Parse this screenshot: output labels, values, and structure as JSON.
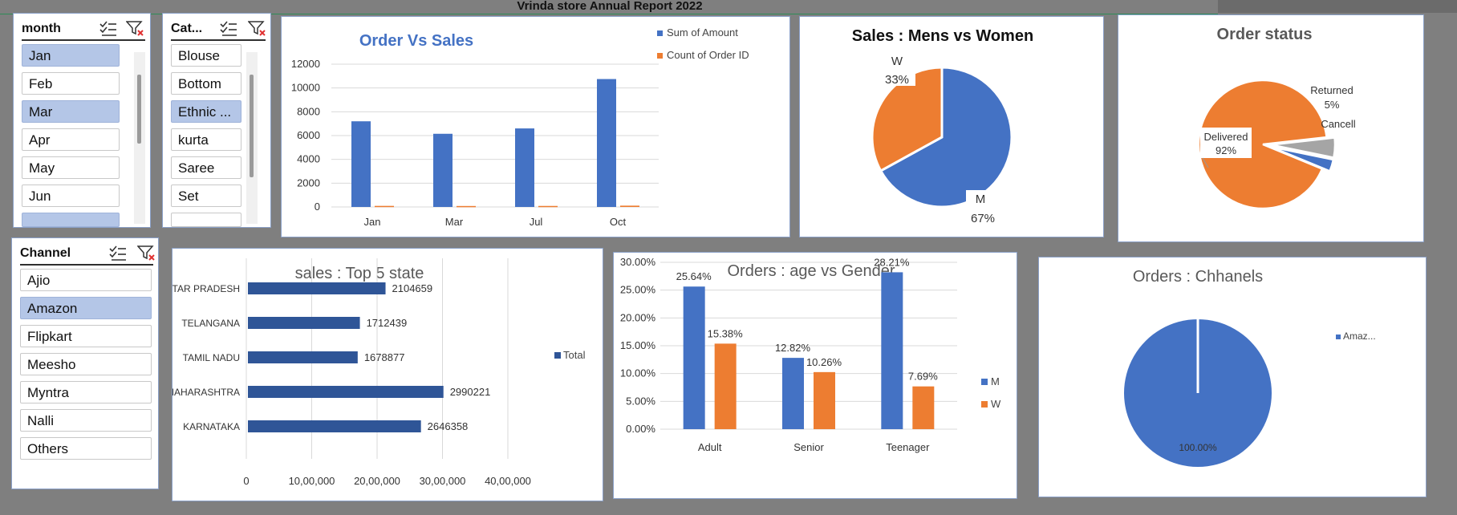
{
  "report_title": "Vrinda store Annual Report 2022",
  "slicers": {
    "month": {
      "label": "month",
      "items": [
        {
          "label": "Jan",
          "selected": true
        },
        {
          "label": "Feb",
          "selected": false
        },
        {
          "label": "Mar",
          "selected": true
        },
        {
          "label": "Apr",
          "selected": false
        },
        {
          "label": "May",
          "selected": false
        },
        {
          "label": "Jun",
          "selected": false
        }
      ]
    },
    "category": {
      "label": "Cat...",
      "items": [
        {
          "label": "Blouse",
          "selected": false
        },
        {
          "label": "Bottom",
          "selected": false
        },
        {
          "label": "Ethnic ...",
          "selected": true
        },
        {
          "label": "kurta",
          "selected": false
        },
        {
          "label": "Saree",
          "selected": false
        },
        {
          "label": "Set",
          "selected": false
        }
      ]
    },
    "channel": {
      "label": "Channel",
      "items": [
        {
          "label": "Ajio",
          "selected": false
        },
        {
          "label": "Amazon",
          "selected": true
        },
        {
          "label": "Flipkart",
          "selected": false
        },
        {
          "label": "Meesho",
          "selected": false
        },
        {
          "label": "Myntra",
          "selected": false
        },
        {
          "label": "Nalli",
          "selected": false
        },
        {
          "label": "Others",
          "selected": false
        }
      ]
    }
  },
  "colors": {
    "blue": "#4472c4",
    "orange": "#ed7d31",
    "gray": "#a5a5a5",
    "darkblue": "#2f5597",
    "accent_title": "#4472c4"
  },
  "chart_data": [
    {
      "id": "order-vs-sales",
      "type": "bar",
      "title": "Order Vs Sales",
      "categories": [
        "Jan",
        "Mar",
        "Jul",
        "Oct"
      ],
      "series": [
        {
          "name": "Sum of Amount",
          "values": [
            7200,
            6150,
            6600,
            10750
          ]
        },
        {
          "name": "Count of Order ID",
          "values": [
            90,
            80,
            85,
            110
          ]
        }
      ],
      "yticks": [
        "12000",
        "10000",
        "8000",
        "6000",
        "4000",
        "2000",
        "0"
      ],
      "ylim": [
        0,
        12000
      ],
      "legend": "top-right"
    },
    {
      "id": "sales-men-women",
      "type": "pie",
      "title": "Sales : Mens vs Women",
      "slices": [
        {
          "name": "M",
          "value": 67,
          "label": "67%"
        },
        {
          "name": "W",
          "value": 33,
          "label": "33%"
        }
      ]
    },
    {
      "id": "order-status",
      "type": "pie",
      "title": "Order status",
      "slices": [
        {
          "name": "Delivered",
          "value": 92,
          "label": "92%"
        },
        {
          "name": "Returned",
          "value": 5,
          "label": "5%"
        },
        {
          "name": "Cancell",
          "value": 3,
          "label": ""
        }
      ]
    },
    {
      "id": "top5-state",
      "type": "bar",
      "orientation": "horizontal",
      "title": "sales : Top 5 state",
      "categories": [
        "UTTAR PRADESH",
        "TELANGANA",
        "TAMIL NADU",
        "MAHARASHTRA",
        "KARNATAKA"
      ],
      "series": [
        {
          "name": "Total",
          "values": [
            2104659,
            1712439,
            1678877,
            2990221,
            2646358
          ]
        }
      ],
      "value_labels": [
        "2104659",
        "1712439",
        "1678877",
        "2990221",
        "2646358"
      ],
      "xticks": [
        "0",
        "10,00,000",
        "20,00,000",
        "30,00,000",
        "40,00,000"
      ],
      "xlim": [
        0,
        4000000
      ],
      "legend": "right"
    },
    {
      "id": "age-vs-gender",
      "type": "bar",
      "title": "Orders : age vs Gender",
      "categories": [
        "Adult",
        "Senior",
        "Teenager"
      ],
      "series": [
        {
          "name": "M",
          "values": [
            25.64,
            12.82,
            28.21
          ],
          "labels": [
            "25.64%",
            "12.82%",
            "28.21%"
          ]
        },
        {
          "name": "W",
          "values": [
            15.38,
            10.26,
            7.69
          ],
          "labels": [
            "15.38%",
            "10.26%",
            "7.69%"
          ]
        }
      ],
      "yticks": [
        "30.00%",
        "25.00%",
        "20.00%",
        "15.00%",
        "10.00%",
        "5.00%",
        "0.00%"
      ],
      "ylim": [
        0,
        30
      ],
      "legend": "right"
    },
    {
      "id": "orders-channels",
      "type": "pie",
      "title": "Orders : Chhanels",
      "slices": [
        {
          "name": "Amaz...",
          "value": 100,
          "label": "100.00%"
        }
      ],
      "legend": "top-right"
    }
  ]
}
